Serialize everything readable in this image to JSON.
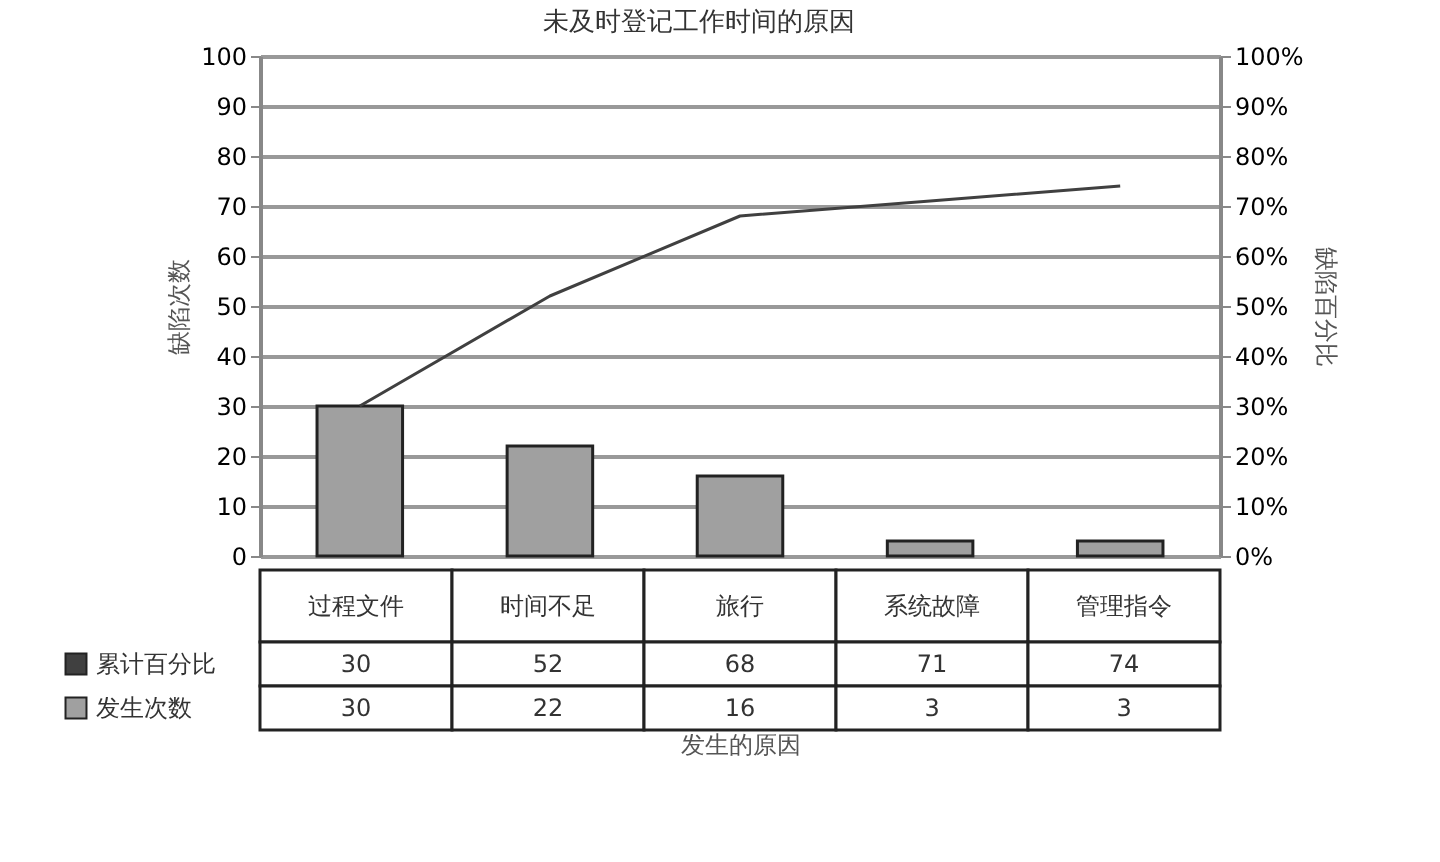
{
  "chart_data": {
    "type": "bar",
    "title": "未及时登记工作时间的原因",
    "xlabel": "发生的原因",
    "ylabel": "缺陷次数",
    "y2label": "缺陷百分比",
    "categories": [
      "过程文件",
      "时间不足",
      "旅行",
      "系统故障",
      "管理指令"
    ],
    "series": [
      {
        "name": "累计百分比",
        "type": "line",
        "axis": "y2",
        "color": "#404040",
        "values": [
          30,
          52,
          68,
          71,
          74
        ]
      },
      {
        "name": "发生次数",
        "color": "#a0a0a0",
        "values": [
          30,
          22,
          16,
          3,
          3
        ]
      }
    ],
    "ylim": [
      0,
      100
    ],
    "yticks": [
      0,
      10,
      20,
      30,
      40,
      50,
      60,
      70,
      80,
      90,
      100
    ],
    "y2lim": [
      0,
      100
    ],
    "y2ticks": [
      {
        "value": 0,
        "label": "0%"
      },
      {
        "value": 10,
        "label": "10%"
      },
      {
        "value": 20,
        "label": "20%"
      },
      {
        "value": 30,
        "label": "30%"
      },
      {
        "value": 40,
        "label": "40%"
      },
      {
        "value": 50,
        "label": "50%"
      },
      {
        "value": 60,
        "label": "60%"
      },
      {
        "value": 70,
        "label": "70%"
      },
      {
        "value": 80,
        "label": "80%"
      },
      {
        "value": 90,
        "label": "90%"
      },
      {
        "value": 100,
        "label": "100%"
      }
    ],
    "grid": "y",
    "legend": "bottom left",
    "data_labels": true,
    "marker": "none",
    "line_style": "solid"
  }
}
